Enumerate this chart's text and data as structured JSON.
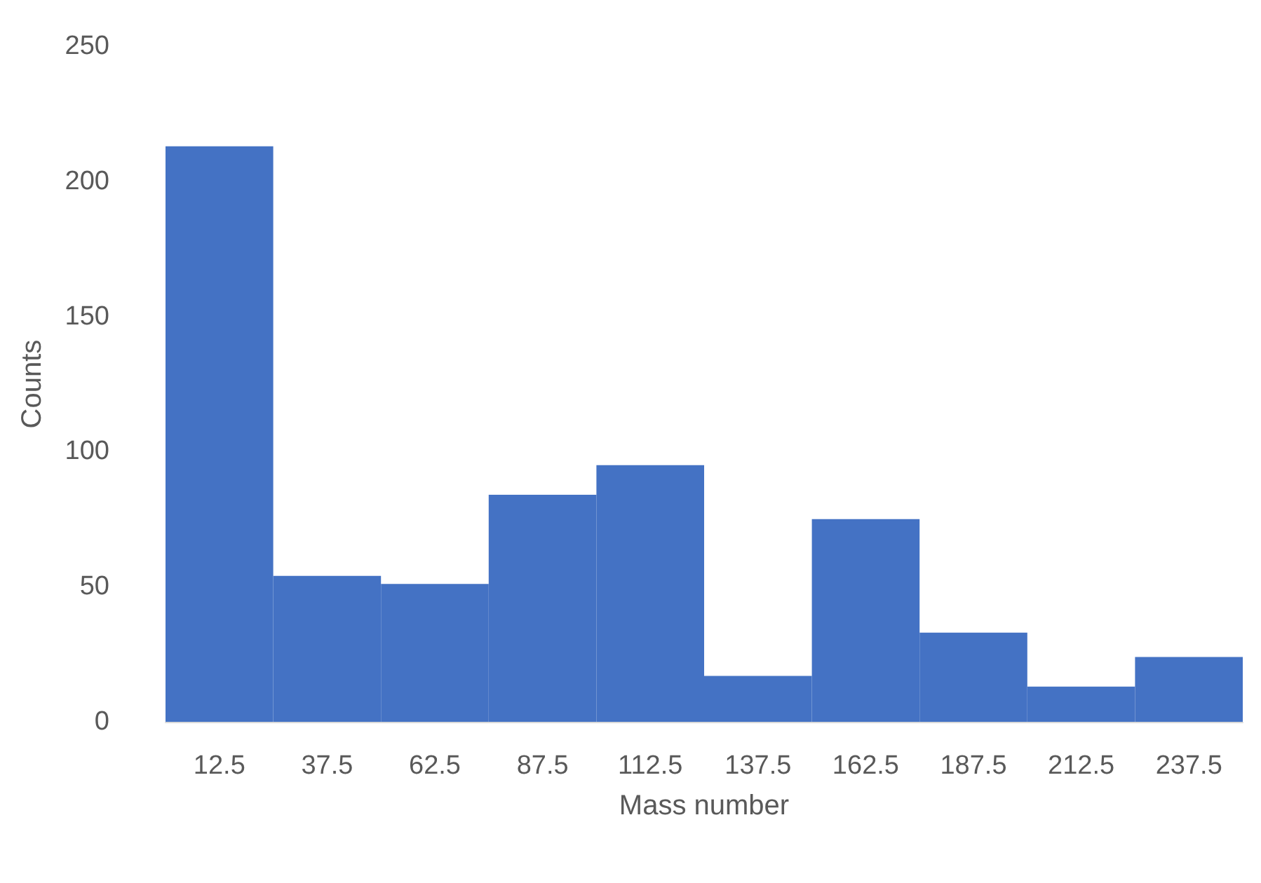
{
  "chart_data": {
    "type": "bar",
    "xlabel": "Mass number",
    "ylabel": "Counts",
    "categories": [
      "12.5",
      "37.5",
      "62.5",
      "87.5",
      "112.5",
      "137.5",
      "162.5",
      "187.5",
      "212.5",
      "237.5"
    ],
    "values": [
      213,
      54,
      51,
      84,
      95,
      17,
      75,
      33,
      13,
      24
    ],
    "color": "#4472c4",
    "ylim": [
      0,
      250
    ],
    "yticks": [
      0,
      50,
      100,
      150,
      200,
      250
    ],
    "grid": false
  }
}
